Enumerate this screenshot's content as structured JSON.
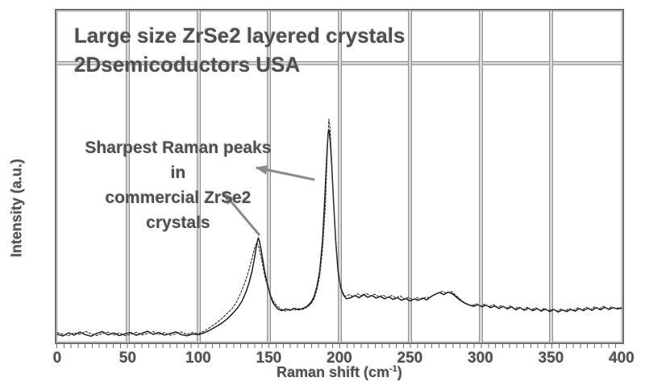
{
  "header": {
    "title_line1": "Large size ZrSe2 layered crystals",
    "title_line2": "2Dsemicoductors USA"
  },
  "annotations": {
    "note_lines": [
      "Sharpest Raman peaks in",
      "commercial ZrSe2",
      "crystals"
    ],
    "arrows": [
      {
        "name": "arrow-to-tall-peak",
        "from": [
          390,
          223
        ],
        "to": [
          318,
          208
        ]
      },
      {
        "name": "arrow-to-small-peak",
        "from": [
          322,
          292
        ],
        "to": [
          278,
          240
        ]
      }
    ]
  },
  "chart_data": {
    "type": "line",
    "title": "Large size ZrSe2 layered crystals 2Dsemicoductors USA",
    "xlabel_main": "Raman shift (cm",
    "xlabel_sup": "-1",
    "xlabel_close": ")",
    "ylabel": "Intensity (a.u.)",
    "xlim": [
      0,
      400
    ],
    "intensity_range": [
      0,
      100
    ],
    "x_ticks": [
      0,
      50,
      100,
      150,
      200,
      250,
      300,
      350,
      400
    ],
    "y_ticks": [],
    "grid": "vertical gridlines at every 50 cm-1; one horizontal gridline near top",
    "legend": "none",
    "peaks": [
      {
        "x": 142.5,
        "relative_intensity": 45.5
      },
      {
        "x": 192.5,
        "relative_intensity": 100
      }
    ],
    "series": [
      {
        "name": "spectrum-solid",
        "style": "solid",
        "points": [
          [
            0,
            1.2
          ],
          [
            4,
            0.4
          ],
          [
            8,
            1.8
          ],
          [
            12,
            0.8
          ],
          [
            16,
            2.2
          ],
          [
            20,
            1.0
          ],
          [
            24,
            0.3
          ],
          [
            28,
            1.6
          ],
          [
            32,
            2.4
          ],
          [
            36,
            0.9
          ],
          [
            40,
            1.8
          ],
          [
            44,
            0.6
          ],
          [
            48,
            1.4
          ],
          [
            52,
            2.0
          ],
          [
            56,
            0.7
          ],
          [
            60,
            1.6
          ],
          [
            64,
            2.6
          ],
          [
            68,
            1.1
          ],
          [
            72,
            2.0
          ],
          [
            76,
            0.8
          ],
          [
            80,
            1.5
          ],
          [
            84,
            2.3
          ],
          [
            88,
            1.0
          ],
          [
            92,
            0.5
          ],
          [
            96,
            1.3
          ],
          [
            100,
            1.0
          ],
          [
            104,
            1.8
          ],
          [
            108,
            3.0
          ],
          [
            112,
            4.5
          ],
          [
            116,
            6.0
          ],
          [
            120,
            8.0
          ],
          [
            124,
            10.5
          ],
          [
            128,
            13.5
          ],
          [
            131,
            16.5
          ],
          [
            134,
            21.0
          ],
          [
            136,
            25.0
          ],
          [
            138,
            30.0
          ],
          [
            140,
            37.0
          ],
          [
            141.5,
            43.0
          ],
          [
            142.5,
            45.5
          ],
          [
            143.5,
            43.5
          ],
          [
            145,
            38.0
          ],
          [
            147,
            30.0
          ],
          [
            149,
            24.0
          ],
          [
            151,
            19.0
          ],
          [
            153,
            15.5
          ],
          [
            156,
            13.0
          ],
          [
            159,
            12.0
          ],
          [
            162,
            12.8
          ],
          [
            165,
            12.2
          ],
          [
            168,
            13.2
          ],
          [
            171,
            12.4
          ],
          [
            174,
            13.0
          ],
          [
            177,
            14.0
          ],
          [
            180,
            16.0
          ],
          [
            182,
            18.5
          ],
          [
            184,
            23.0
          ],
          [
            186,
            30.0
          ],
          [
            188,
            44.0
          ],
          [
            189.5,
            62.0
          ],
          [
            191,
            83.0
          ],
          [
            192,
            94.0
          ],
          [
            192.7,
            95.0
          ],
          [
            193.5,
            90.0
          ],
          [
            194.5,
            79.0
          ],
          [
            196,
            60.0
          ],
          [
            197.5,
            43.0
          ],
          [
            199,
            30.0
          ],
          [
            201,
            22.5
          ],
          [
            203,
            19.0
          ],
          [
            205,
            17.5
          ],
          [
            208,
            18.0
          ],
          [
            211,
            19.0
          ],
          [
            214,
            18.0
          ],
          [
            217,
            19.5
          ],
          [
            220,
            18.2
          ],
          [
            223,
            19.0
          ],
          [
            226,
            17.8
          ],
          [
            229,
            18.6
          ],
          [
            232,
            17.5
          ],
          [
            235,
            18.4
          ],
          [
            238,
            17.2
          ],
          [
            241,
            18.0
          ],
          [
            244,
            16.8
          ],
          [
            247,
            17.6
          ],
          [
            250,
            16.5
          ],
          [
            253,
            17.4
          ],
          [
            256,
            16.8
          ],
          [
            259,
            17.8
          ],
          [
            262,
            17.0
          ],
          [
            265,
            18.6
          ],
          [
            268,
            19.6
          ],
          [
            271,
            20.4
          ],
          [
            274,
            19.4
          ],
          [
            277,
            20.6
          ],
          [
            280,
            19.8
          ],
          [
            283,
            18.2
          ],
          [
            286,
            16.6
          ],
          [
            289,
            15.4
          ],
          [
            292,
            14.6
          ],
          [
            295,
            14.0
          ],
          [
            298,
            14.8
          ],
          [
            301,
            13.8
          ],
          [
            304,
            14.6
          ],
          [
            307,
            13.4
          ],
          [
            310,
            14.2
          ],
          [
            313,
            13.0
          ],
          [
            316,
            14.0
          ],
          [
            319,
            12.8
          ],
          [
            322,
            13.8
          ],
          [
            325,
            12.4
          ],
          [
            328,
            13.4
          ],
          [
            331,
            12.2
          ],
          [
            334,
            13.2
          ],
          [
            337,
            12.0
          ],
          [
            340,
            13.0
          ],
          [
            343,
            11.8
          ],
          [
            346,
            12.8
          ],
          [
            349,
            11.6
          ],
          [
            352,
            12.6
          ],
          [
            355,
            11.4
          ],
          [
            358,
            12.4
          ],
          [
            361,
            11.6
          ],
          [
            364,
            12.6
          ],
          [
            367,
            11.8
          ],
          [
            370,
            13.0
          ],
          [
            373,
            12.0
          ],
          [
            376,
            13.2
          ],
          [
            379,
            12.2
          ],
          [
            382,
            13.4
          ],
          [
            385,
            12.4
          ],
          [
            388,
            13.6
          ],
          [
            391,
            12.6
          ],
          [
            394,
            13.4
          ],
          [
            397,
            12.8
          ],
          [
            400,
            13.2
          ]
        ]
      },
      {
        "name": "spectrum-dashed",
        "style": "dashed",
        "points": [
          [
            0,
            2.0
          ],
          [
            4,
            1.2
          ],
          [
            8,
            0.5
          ],
          [
            12,
            1.9
          ],
          [
            16,
            1.1
          ],
          [
            20,
            2.5
          ],
          [
            24,
            1.4
          ],
          [
            28,
            0.6
          ],
          [
            32,
            1.5
          ],
          [
            36,
            2.2
          ],
          [
            40,
            0.8
          ],
          [
            44,
            1.9
          ],
          [
            48,
            0.5
          ],
          [
            52,
            1.2
          ],
          [
            56,
            2.1
          ],
          [
            60,
            0.9
          ],
          [
            64,
            1.5
          ],
          [
            68,
            2.4
          ],
          [
            72,
            1.0
          ],
          [
            76,
            2.0
          ],
          [
            80,
            0.7
          ],
          [
            84,
            1.4
          ],
          [
            88,
            2.2
          ],
          [
            92,
            1.2
          ],
          [
            96,
            2.0
          ],
          [
            100,
            1.4
          ],
          [
            104,
            2.6
          ],
          [
            108,
            4.2
          ],
          [
            112,
            6.0
          ],
          [
            116,
            8.0
          ],
          [
            120,
            10.5
          ],
          [
            124,
            13.0
          ],
          [
            127,
            16.0
          ],
          [
            130,
            20.0
          ],
          [
            133,
            25.0
          ],
          [
            136,
            31.0
          ],
          [
            138,
            36.0
          ],
          [
            140,
            41.0
          ],
          [
            141.5,
            43.5
          ],
          [
            143,
            41.0
          ],
          [
            145,
            35.0
          ],
          [
            147,
            28.0
          ],
          [
            150,
            21.0
          ],
          [
            153,
            16.5
          ],
          [
            156,
            14.0
          ],
          [
            159,
            12.6
          ],
          [
            162,
            11.8
          ],
          [
            165,
            12.8
          ],
          [
            168,
            12.2
          ],
          [
            171,
            13.0
          ],
          [
            174,
            12.6
          ],
          [
            177,
            13.6
          ],
          [
            180,
            15.2
          ],
          [
            182,
            17.5
          ],
          [
            184,
            21.5
          ],
          [
            186,
            28.0
          ],
          [
            188,
            40.0
          ],
          [
            190,
            60.0
          ],
          [
            191.5,
            86.0
          ],
          [
            192.5,
            100.0
          ],
          [
            193.3,
            96.0
          ],
          [
            194.3,
            84.0
          ],
          [
            195.5,
            66.0
          ],
          [
            197,
            48.0
          ],
          [
            198.5,
            34.0
          ],
          [
            200,
            26.0
          ],
          [
            202,
            21.0
          ],
          [
            204,
            18.6
          ],
          [
            207,
            19.4
          ],
          [
            210,
            18.4
          ],
          [
            213,
            19.8
          ],
          [
            216,
            18.6
          ],
          [
            219,
            20.0
          ],
          [
            222,
            18.8
          ],
          [
            225,
            19.6
          ],
          [
            228,
            18.4
          ],
          [
            231,
            19.2
          ],
          [
            234,
            18.0
          ],
          [
            237,
            19.0
          ],
          [
            240,
            17.8
          ],
          [
            243,
            18.8
          ],
          [
            246,
            17.4
          ],
          [
            249,
            18.2
          ],
          [
            252,
            17.0
          ],
          [
            255,
            18.0
          ],
          [
            258,
            17.2
          ],
          [
            261,
            18.2
          ],
          [
            264,
            18.0
          ],
          [
            267,
            19.2
          ],
          [
            270,
            20.0
          ],
          [
            273,
            21.0
          ],
          [
            276,
            20.0
          ],
          [
            279,
            21.0
          ],
          [
            282,
            19.4
          ],
          [
            285,
            17.6
          ],
          [
            288,
            16.0
          ],
          [
            291,
            15.0
          ],
          [
            294,
            14.4
          ],
          [
            297,
            15.2
          ],
          [
            300,
            14.2
          ],
          [
            303,
            15.0
          ],
          [
            306,
            13.8
          ],
          [
            309,
            14.8
          ],
          [
            312,
            13.6
          ],
          [
            315,
            14.4
          ],
          [
            318,
            13.2
          ],
          [
            321,
            14.2
          ],
          [
            324,
            12.8
          ],
          [
            327,
            13.8
          ],
          [
            330,
            12.6
          ],
          [
            333,
            13.6
          ],
          [
            336,
            12.4
          ],
          [
            339,
            13.4
          ],
          [
            342,
            12.2
          ],
          [
            345,
            13.0
          ],
          [
            348,
            12.0
          ],
          [
            351,
            12.8
          ],
          [
            354,
            11.8
          ],
          [
            357,
            12.8
          ],
          [
            360,
            12.0
          ],
          [
            363,
            13.0
          ],
          [
            366,
            12.2
          ],
          [
            369,
            13.4
          ],
          [
            372,
            12.4
          ],
          [
            375,
            13.6
          ],
          [
            378,
            12.6
          ],
          [
            381,
            13.8
          ],
          [
            384,
            12.8
          ],
          [
            387,
            14.0
          ],
          [
            390,
            13.0
          ],
          [
            393,
            13.8
          ],
          [
            396,
            13.0
          ],
          [
            399,
            13.6
          ]
        ]
      }
    ]
  },
  "colors": {
    "background": "#ffffff",
    "text": "#4f4f4f",
    "curve": "#1c1c1c",
    "grid_light": "#d6d6d6",
    "grid_dark": "#8f8f8f",
    "border_dark": "#6f6f6f",
    "border_light": "#d2d2d2",
    "arrow": "#8a8a8a"
  }
}
